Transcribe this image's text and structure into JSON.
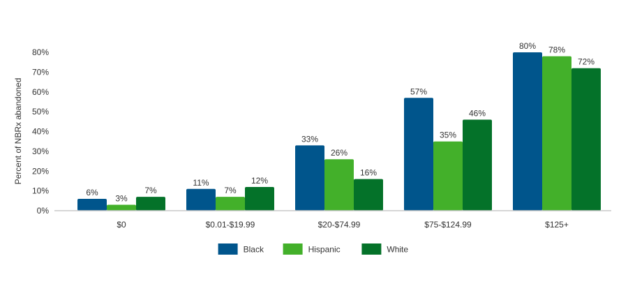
{
  "chart_data": {
    "type": "bar",
    "title": "",
    "xlabel": "",
    "ylabel": "Percent of NBRx abandoned",
    "ylim": [
      0,
      80
    ],
    "yticks": [
      "0%",
      "10%",
      "20%",
      "30%",
      "40%",
      "50%",
      "60%",
      "70%",
      "80%"
    ],
    "categories": [
      "$0",
      "$0.01-$19.99",
      "$20-$74.99",
      "$75-$124.99",
      "$125+"
    ],
    "series": [
      {
        "name": "Black",
        "color": "#00558c",
        "values": [
          6,
          11,
          33,
          57,
          80
        ],
        "labels": [
          "6%",
          "11%",
          "33%",
          "57%",
          "80%"
        ]
      },
      {
        "name": "Hispanic",
        "color": "#43b02a",
        "values": [
          3,
          7,
          26,
          35,
          78
        ],
        "labels": [
          "3%",
          "7%",
          "26%",
          "35%",
          "78%"
        ]
      },
      {
        "name": "White",
        "color": "#047229",
        "values": [
          7,
          12,
          16,
          46,
          72
        ],
        "labels": [
          "7%",
          "12%",
          "16%",
          "46%",
          "72%"
        ]
      }
    ],
    "grid": false,
    "legend": "bottom-center"
  }
}
